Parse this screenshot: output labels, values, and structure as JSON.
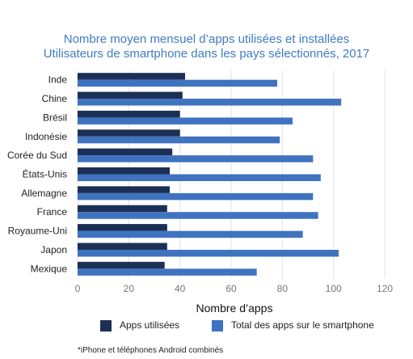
{
  "chart_data": {
    "type": "bar",
    "orientation": "horizontal",
    "title": "Nombre moyen mensuel d’apps utilisées et installées",
    "subtitle": "Utilisateurs de smartphone dans les pays sélectionnés, 2017",
    "xlabel": "Nombre d’apps",
    "ylabel": "",
    "xlim": [
      0,
      120
    ],
    "xticks": [
      0,
      20,
      40,
      60,
      80,
      100,
      120
    ],
    "grid": "vertical",
    "legend_position": "bottom",
    "categories": [
      "Inde",
      "Chine",
      "Brésil",
      "Indonésie",
      "Corée du Sud",
      "États-Unis",
      "Allemagne",
      "France",
      "Royaume-Uni",
      "Japon",
      "Mexique"
    ],
    "series": [
      {
        "name": "Apps utilisées",
        "color": "#1c2f55",
        "values": [
          42,
          41,
          40,
          40,
          37,
          36,
          36,
          35,
          35,
          35,
          34
        ]
      },
      {
        "name": "Total des apps sur le smartphone",
        "color": "#3f73c0",
        "values": [
          78,
          103,
          84,
          79,
          92,
          95,
          92,
          94,
          88,
          102,
          70
        ]
      }
    ],
    "footnote": "*iPhone et téléphones Android combinés"
  }
}
